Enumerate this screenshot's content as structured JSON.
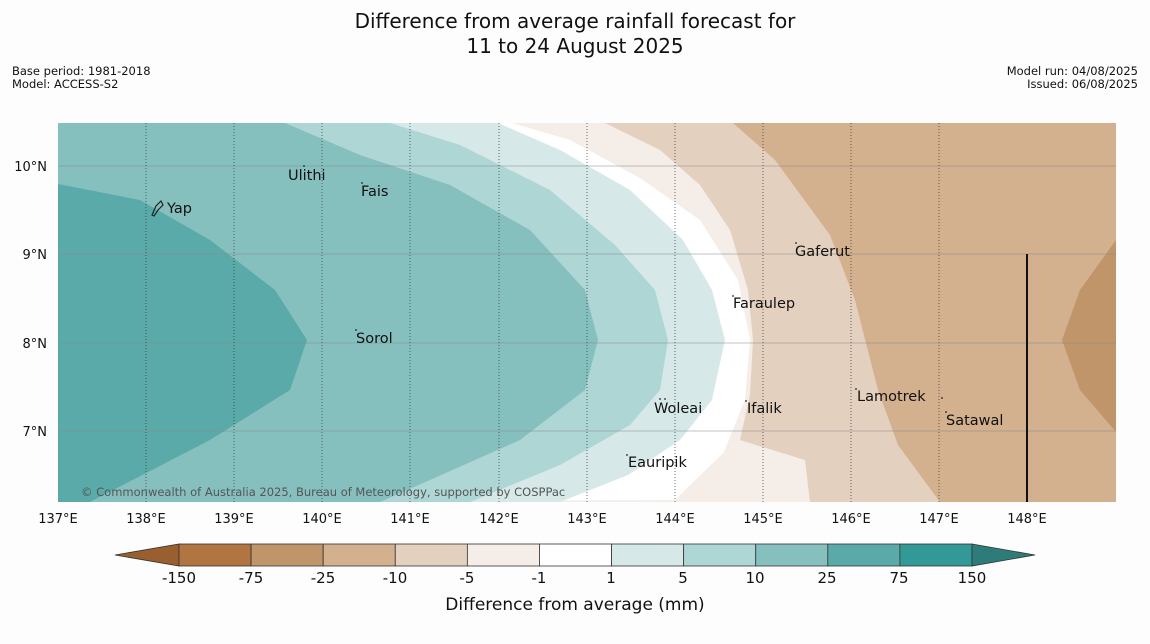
{
  "title_line1": "Difference from average rainfall forecast for",
  "title_line2": "11 to 24 August 2025",
  "meta_left": {
    "base_period": "Base period: 1981-2018",
    "model": "Model: ACCESS-S2"
  },
  "meta_right": {
    "model_run": "Model run: 04/08/2025",
    "issued": "Issued: 06/08/2025"
  },
  "copyright": "© Commonwealth of Australia 2025, Bureau of Meteorology, supported by COSPPac",
  "map": {
    "lon_ticks": [
      "137°E",
      "138°E",
      "139°E",
      "140°E",
      "141°E",
      "142°E",
      "143°E",
      "144°E",
      "145°E",
      "146°E",
      "147°E",
      "148°E"
    ],
    "lat_ticks": [
      "10°N",
      "9°N",
      "8°N",
      "7°N"
    ],
    "places": [
      {
        "name": "Yap"
      },
      {
        "name": "Ulithi"
      },
      {
        "name": "Fais"
      },
      {
        "name": "Sorol"
      },
      {
        "name": "Gaferut"
      },
      {
        "name": "Faraulep"
      },
      {
        "name": "Woleai"
      },
      {
        "name": "Ifalik"
      },
      {
        "name": "Eauripik"
      },
      {
        "name": "Lamotrek"
      },
      {
        "name": "Satawal"
      }
    ]
  },
  "colorbar": {
    "title": "Difference from average (mm)",
    "ticks": [
      "-150",
      "-75",
      "-25",
      "-10",
      "-5",
      "-1",
      "1",
      "5",
      "10",
      "25",
      "75",
      "150"
    ],
    "colors": [
      "#b07540",
      "#c0956a",
      "#d3b08e",
      "#e4d0bf",
      "#f4ede8",
      "#ffffff",
      "#d6e9e8",
      "#aed6d5",
      "#85c0bf",
      "#5aaaaa",
      "#339997"
    ],
    "extend_low_color": "#9a5f2e",
    "extend_high_color": "#2e7c7a"
  }
}
